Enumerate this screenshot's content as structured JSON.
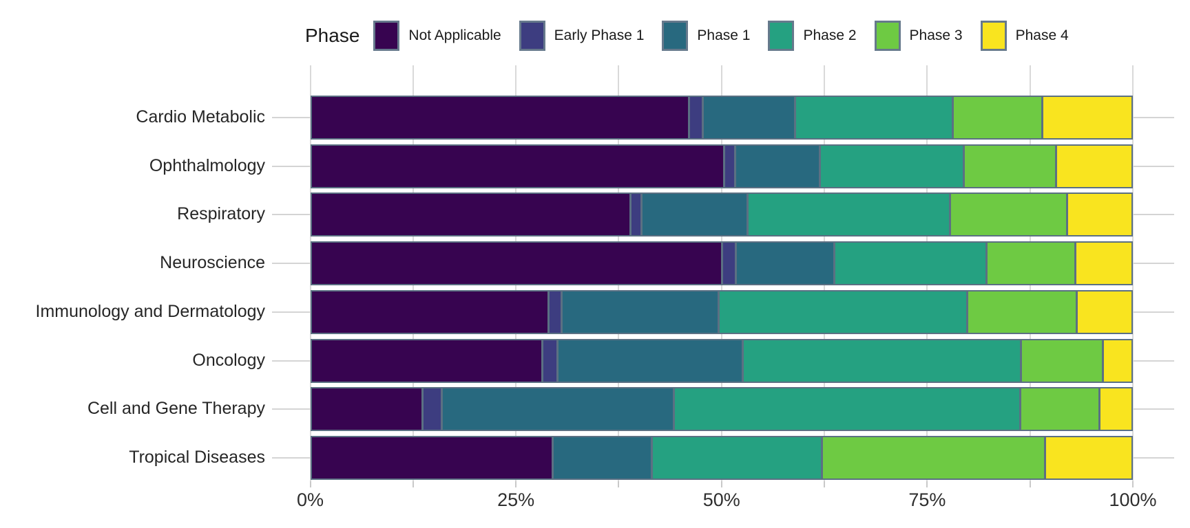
{
  "chart_data": {
    "type": "bar",
    "orientation": "horizontal",
    "stacked": true,
    "unit": "percent",
    "title": "",
    "legend_title": "Phase",
    "legend_position": "top",
    "grid": true,
    "xlim": [
      0,
      100
    ],
    "x_major_ticks": [
      0,
      25,
      50,
      75,
      100
    ],
    "x_tick_labels": [
      "0%",
      "25%",
      "50%",
      "75%",
      "100%"
    ],
    "x_minor_step": 12.5,
    "categories": [
      "Cardio Metabolic",
      "Ophthalmology",
      "Respiratory",
      "Neuroscience",
      "Immunology and Dermatology",
      "Oncology",
      "Cell and Gene Therapy",
      "Tropical Diseases"
    ],
    "series": [
      {
        "name": "Not Applicable",
        "color": "#370450",
        "values": [
          46.5,
          50.8,
          39.3,
          50.6,
          29.1,
          28.4,
          13.6,
          29.6
        ]
      },
      {
        "name": "Early Phase 1",
        "color": "#3d3d80",
        "values": [
          1.4,
          1.1,
          1.1,
          1.4,
          1.4,
          1.6,
          2.1,
          0
        ]
      },
      {
        "name": "Phase 1",
        "color": "#28697f",
        "values": [
          11.2,
          10.2,
          12.8,
          11.9,
          19.1,
          22.6,
          28.4,
          11.9
        ]
      },
      {
        "name": "Phase 2",
        "color": "#25a181",
        "values": [
          19.2,
          17.6,
          24.8,
          18.6,
          30.5,
          34.1,
          42.5,
          20.7
        ]
      },
      {
        "name": "Phase 3",
        "color": "#6eca43",
        "values": [
          10.8,
          11.1,
          14.2,
          10.7,
          13.3,
          9.9,
          9.6,
          27.3
        ]
      },
      {
        "name": "Phase 4",
        "color": "#f9e41f",
        "values": [
          10.9,
          9.2,
          7.8,
          6.8,
          6.6,
          3.4,
          3.8,
          10.5
        ]
      }
    ],
    "style": {
      "segment_border_color": "#5b7083",
      "gridline_color": "#d9d9d9",
      "text_color": "#262626",
      "background": "#ffffff"
    }
  }
}
